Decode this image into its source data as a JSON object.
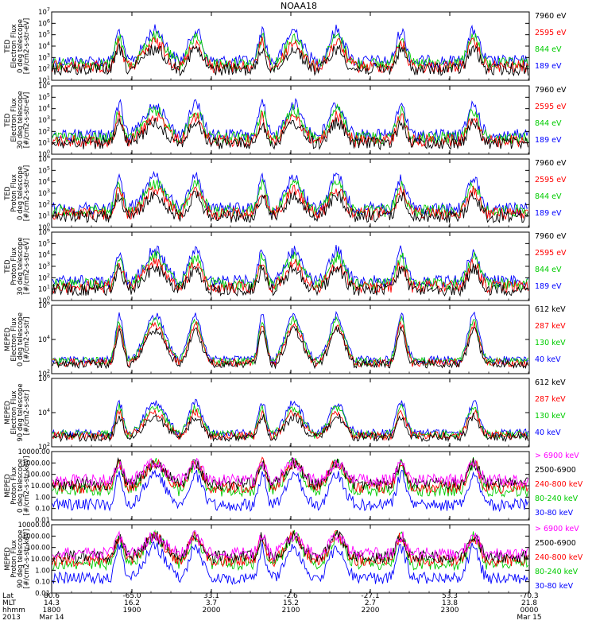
{
  "title": "NOAA18",
  "colors": {
    "black": "#000000",
    "blue": "#0000ff",
    "red": "#ff0000",
    "green": "#00cc00",
    "magenta": "#ff00ff"
  },
  "panels": [
    {
      "ylabel_lines": [
        "TED",
        "Electron Flux",
        "0 deg telescope",
        "[#/cm2-s-str-eV]"
      ],
      "tick_labels": [
        "10^1",
        "10^2",
        "10^3",
        "10^4",
        "10^5",
        "10^6",
        "10^7"
      ],
      "legend": [
        {
          "text": "7960 eV",
          "color": "#000000"
        },
        {
          "text": "2595 eV",
          "color": "#ff0000"
        },
        {
          "text": "844 eV",
          "color": "#00cc00"
        },
        {
          "text": "189 eV",
          "color": "#0000ff"
        }
      ]
    },
    {
      "ylabel_lines": [
        "TED",
        "Electron Flux",
        "30 deg telescope",
        "[#/cm2-s-str-eV]"
      ],
      "tick_labels": [
        "10^0",
        "10^1",
        "10^2",
        "10^3",
        "10^4",
        "10^5",
        "10^6"
      ],
      "legend": [
        {
          "text": "7960 eV",
          "color": "#000000"
        },
        {
          "text": "2595 eV",
          "color": "#ff0000"
        },
        {
          "text": "844 eV",
          "color": "#00cc00"
        },
        {
          "text": "189 eV",
          "color": "#0000ff"
        }
      ]
    },
    {
      "ylabel_lines": [
        "TED",
        "Proton Flux",
        "0 deg telescope",
        "[#/cm2-s-str-eV]"
      ],
      "tick_labels": [
        "10^0",
        "10^1",
        "10^2",
        "10^3",
        "10^4",
        "10^5",
        "10^6"
      ],
      "legend": [
        {
          "text": "7960 eV",
          "color": "#000000"
        },
        {
          "text": "2595 eV",
          "color": "#ff0000"
        },
        {
          "text": "844 eV",
          "color": "#00cc00"
        },
        {
          "text": "189 eV",
          "color": "#0000ff"
        }
      ]
    },
    {
      "ylabel_lines": [
        "TED",
        "Proton Flux",
        "30 deg telescope",
        "[#/cm2-s-str-eV]"
      ],
      "tick_labels": [
        "10^0",
        "10^1",
        "10^2",
        "10^3",
        "10^4",
        "10^5",
        "10^6"
      ],
      "legend": [
        {
          "text": "7960 eV",
          "color": "#000000"
        },
        {
          "text": "2595 eV",
          "color": "#ff0000"
        },
        {
          "text": "844 eV",
          "color": "#00cc00"
        },
        {
          "text": "189 eV",
          "color": "#0000ff"
        }
      ]
    },
    {
      "ylabel_lines": [
        "MEPED",
        "Electron Flux",
        "0 deg telescope",
        "[#/cm2-s-str]"
      ],
      "tick_labels": [
        "10^2",
        "10^4",
        "10^6"
      ],
      "legend": [
        {
          "text": "612 keV",
          "color": "#000000"
        },
        {
          "text": "287 keV",
          "color": "#ff0000"
        },
        {
          "text": "130 keV",
          "color": "#00cc00"
        },
        {
          "text": "40 keV",
          "color": "#0000ff"
        }
      ]
    },
    {
      "ylabel_lines": [
        "MEPED",
        "Electron Flux",
        "90 deg telescope",
        "[#/cm2-s-str]"
      ],
      "tick_labels": [
        "10^2",
        "10^4",
        "10^6"
      ],
      "legend": [
        {
          "text": "612 keV",
          "color": "#000000"
        },
        {
          "text": "287 keV",
          "color": "#ff0000"
        },
        {
          "text": "130 keV",
          "color": "#00cc00"
        },
        {
          "text": "40 keV",
          "color": "#0000ff"
        }
      ]
    },
    {
      "ylabel_lines": [
        "MEPED",
        "Proton Flux",
        "0 deg telescope",
        "[#/cm2-s-str-keV]"
      ],
      "tick_labels": [
        "0.01",
        "0.10",
        "1.00",
        "10.00",
        "100.00",
        "1000.00",
        "10000.00"
      ],
      "legend": [
        {
          "text": "> 6900 keV",
          "color": "#ff00ff"
        },
        {
          "text": "2500-6900",
          "color": "#000000"
        },
        {
          "text": "240-800 keV",
          "color": "#ff0000"
        },
        {
          "text": "80-240 keV",
          "color": "#00cc00"
        },
        {
          "text": "30-80 keV",
          "color": "#0000ff"
        }
      ]
    },
    {
      "ylabel_lines": [
        "MEPED",
        "Proton Flux",
        "90 deg telescope",
        "[#/cm2-s-str-keV]"
      ],
      "tick_labels": [
        "0.01",
        "0.10",
        "1.00",
        "10.00",
        "100.00",
        "1000.00",
        "10000.00"
      ],
      "legend": [
        {
          "text": "> 6900 keV",
          "color": "#ff00ff"
        },
        {
          "text": "2500-6900",
          "color": "#000000"
        },
        {
          "text": "240-800 keV",
          "color": "#ff0000"
        },
        {
          "text": "80-240 keV",
          "color": "#00cc00"
        },
        {
          "text": "30-80 keV",
          "color": "#0000ff"
        }
      ]
    }
  ],
  "xaxis": {
    "row_labels": [
      "Lat",
      "MLT",
      "hhmm",
      "2013"
    ],
    "columns": [
      {
        "lat": "80.6",
        "mlt": "14.3",
        "hhmm": "1800",
        "date": "Mar 14"
      },
      {
        "lat": "-65.0",
        "mlt": "16.2",
        "hhmm": "1900",
        "date": ""
      },
      {
        "lat": "33.1",
        "mlt": "3.7",
        "hhmm": "2000",
        "date": ""
      },
      {
        "lat": "-2.6",
        "mlt": "15.2",
        "hhmm": "2100",
        "date": ""
      },
      {
        "lat": "-27.1",
        "mlt": "2.7",
        "hhmm": "2200",
        "date": ""
      },
      {
        "lat": "53.3",
        "mlt": "13.8",
        "hhmm": "2300",
        "date": ""
      },
      {
        "lat": "-70.3",
        "mlt": "21.8",
        "hhmm": "0000",
        "date": "Mar 15"
      }
    ]
  },
  "chart_data": [
    {
      "type": "line",
      "title": "NOAA18",
      "xlabel": "hhmm",
      "ylabel": "TED Electron Flux 0 deg telescope [#/cm2-s-str-eV]",
      "x": [
        "1800",
        "1900",
        "2000",
        "2100",
        "2200",
        "2300",
        "0000"
      ],
      "yscale": "log",
      "ylim": [
        10,
        10000000
      ],
      "series": [
        {
          "name": "7960 eV",
          "color": "#000000"
        },
        {
          "name": "2595 eV",
          "color": "#ff0000"
        },
        {
          "name": "844 eV",
          "color": "#00cc00"
        },
        {
          "name": "189 eV",
          "color": "#0000ff"
        }
      ]
    },
    {
      "type": "line",
      "ylabel": "TED Electron Flux 30 deg telescope [#/cm2-s-str-eV]",
      "yscale": "log",
      "ylim": [
        1,
        1000000
      ],
      "series": [
        {
          "name": "7960 eV",
          "color": "#000000"
        },
        {
          "name": "2595 eV",
          "color": "#ff0000"
        },
        {
          "name": "844 eV",
          "color": "#00cc00"
        },
        {
          "name": "189 eV",
          "color": "#0000ff"
        }
      ]
    },
    {
      "type": "line",
      "ylabel": "TED Proton Flux 0 deg telescope [#/cm2-s-str-eV]",
      "yscale": "log",
      "ylim": [
        1,
        1000000
      ],
      "series": [
        {
          "name": "7960 eV",
          "color": "#000000"
        },
        {
          "name": "2595 eV",
          "color": "#ff0000"
        },
        {
          "name": "844 eV",
          "color": "#00cc00"
        },
        {
          "name": "189 eV",
          "color": "#0000ff"
        }
      ]
    },
    {
      "type": "line",
      "ylabel": "TED Proton Flux 30 deg telescope [#/cm2-s-str-eV]",
      "yscale": "log",
      "ylim": [
        1,
        1000000
      ],
      "series": [
        {
          "name": "7960 eV",
          "color": "#000000"
        },
        {
          "name": "2595 eV",
          "color": "#ff0000"
        },
        {
          "name": "844 eV",
          "color": "#00cc00"
        },
        {
          "name": "189 eV",
          "color": "#0000ff"
        }
      ]
    },
    {
      "type": "line",
      "ylabel": "MEPED Electron Flux 0 deg telescope [#/cm2-s-str]",
      "yscale": "log",
      "ylim": [
        100,
        1000000
      ],
      "series": [
        {
          "name": "612 keV",
          "color": "#000000"
        },
        {
          "name": "287 keV",
          "color": "#ff0000"
        },
        {
          "name": "130 keV",
          "color": "#00cc00"
        },
        {
          "name": "40 keV",
          "color": "#0000ff"
        }
      ]
    },
    {
      "type": "line",
      "ylabel": "MEPED Electron Flux 90 deg telescope [#/cm2-s-str]",
      "yscale": "log",
      "ylim": [
        100,
        1000000
      ],
      "series": [
        {
          "name": "612 keV",
          "color": "#000000"
        },
        {
          "name": "287 keV",
          "color": "#ff0000"
        },
        {
          "name": "130 keV",
          "color": "#00cc00"
        },
        {
          "name": "40 keV",
          "color": "#0000ff"
        }
      ]
    },
    {
      "type": "line",
      "ylabel": "MEPED Proton Flux 0 deg telescope [#/cm2-s-str-keV]",
      "yscale": "log",
      "ylim": [
        0.01,
        10000
      ],
      "series": [
        {
          "name": "> 6900 keV",
          "color": "#ff00ff"
        },
        {
          "name": "2500-6900",
          "color": "#000000"
        },
        {
          "name": "240-800 keV",
          "color": "#ff0000"
        },
        {
          "name": "80-240 keV",
          "color": "#00cc00"
        },
        {
          "name": "30-80 keV",
          "color": "#0000ff"
        }
      ]
    },
    {
      "type": "line",
      "ylabel": "MEPED Proton Flux 90 deg telescope [#/cm2-s-str-keV]",
      "yscale": "log",
      "ylim": [
        0.01,
        10000
      ],
      "series": [
        {
          "name": "> 6900 keV",
          "color": "#ff00ff"
        },
        {
          "name": "2500-6900",
          "color": "#000000"
        },
        {
          "name": "240-800 keV",
          "color": "#ff0000"
        },
        {
          "name": "80-240 keV",
          "color": "#00cc00"
        },
        {
          "name": "30-80 keV",
          "color": "#0000ff"
        }
      ]
    }
  ]
}
